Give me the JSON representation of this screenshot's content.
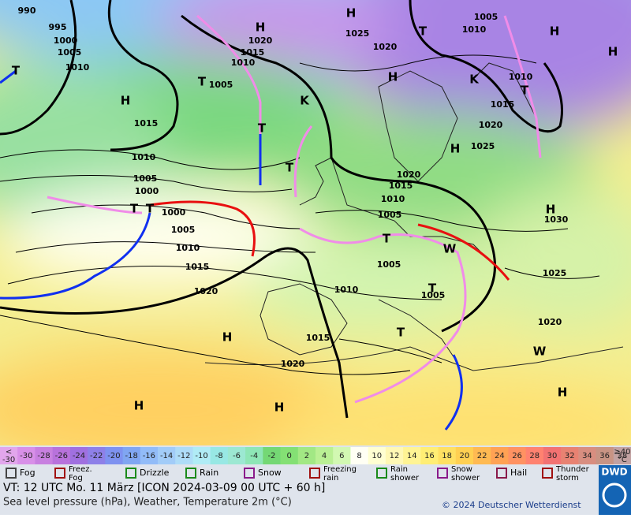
{
  "map": {
    "labels": [
      "990",
      "995",
      "1000",
      "1005",
      "1010",
      "1015",
      "1010",
      "1005",
      "1000",
      "1000",
      "1005",
      "1010",
      "1015",
      "1020",
      "1005",
      "1010",
      "1015",
      "1020",
      "1025",
      "1020",
      "1005",
      "1010",
      "1010",
      "1015",
      "1020",
      "1025",
      "1020",
      "1015",
      "1010",
      "1005",
      "1030",
      "1025",
      "1020",
      "1005",
      "1005",
      "1010",
      "1015",
      "1020",
      "H",
      "H",
      "H",
      "H",
      "H",
      "H",
      "H",
      "H",
      "H",
      "H",
      "H",
      "H",
      "T",
      "T",
      "T",
      "T",
      "T",
      "T",
      "T",
      "T",
      "T",
      "T",
      "T",
      "K",
      "K",
      "W",
      "W"
    ]
  },
  "scale": {
    "first": [
      "<",
      "-30"
    ],
    "values": [
      -30,
      -28,
      -26,
      -24,
      -22,
      -20,
      -18,
      -16,
      -14,
      -12,
      -10,
      -8,
      -6,
      -4,
      -2,
      0,
      2,
      4,
      6,
      8,
      10,
      12,
      14,
      16,
      18,
      20,
      22,
      24,
      26,
      28,
      30,
      32,
      34,
      36,
      38
    ],
    "last": [
      "≥40",
      "°C"
    ],
    "colors": [
      "#e2a6ec",
      "#d890e8",
      "#c880e0",
      "#b872dc",
      "#a070e0",
      "#8e80e8",
      "#7e92f0",
      "#80a6f2",
      "#92bcf8",
      "#a2ccf8",
      "#aedcf8",
      "#b0ecf6",
      "#98e8e4",
      "#9ce8d2",
      "#8ee6b6",
      "#74d874",
      "#84e074",
      "#a2e884",
      "#baf094",
      "#d2f8b2",
      "#fffff4",
      "#ffffd2",
      "#fff8b4",
      "#fff494",
      "#ffee74",
      "#ffe062",
      "#ffd052",
      "#ffba52",
      "#ffa254",
      "#ff9262",
      "#ff8270",
      "#f27272",
      "#e88272",
      "#d88e80",
      "#c89484",
      "#c2a2a2"
    ]
  },
  "legend": [
    [
      "Fog"
    ],
    [
      "Freez.",
      "Fog"
    ],
    [
      "Drizzle"
    ],
    [
      "Rain"
    ],
    [
      "Snow"
    ],
    [
      "Freezing",
      "rain"
    ],
    [
      "Rain",
      "shower"
    ],
    [
      "Snow",
      "shower"
    ],
    [
      "Hail"
    ],
    [
      "Thunder",
      "storm"
    ]
  ],
  "footer": {
    "line1": "VT: 12 UTC Mo.  11 März [ICON 2024-03-09  00 UTC + 60 h]",
    "line2": "Sea level pressure (hPa), Weather, Temperature 2m (°C)",
    "copyright": "© 2024 Deutscher Wetterdienst",
    "logo": "DWD"
  }
}
